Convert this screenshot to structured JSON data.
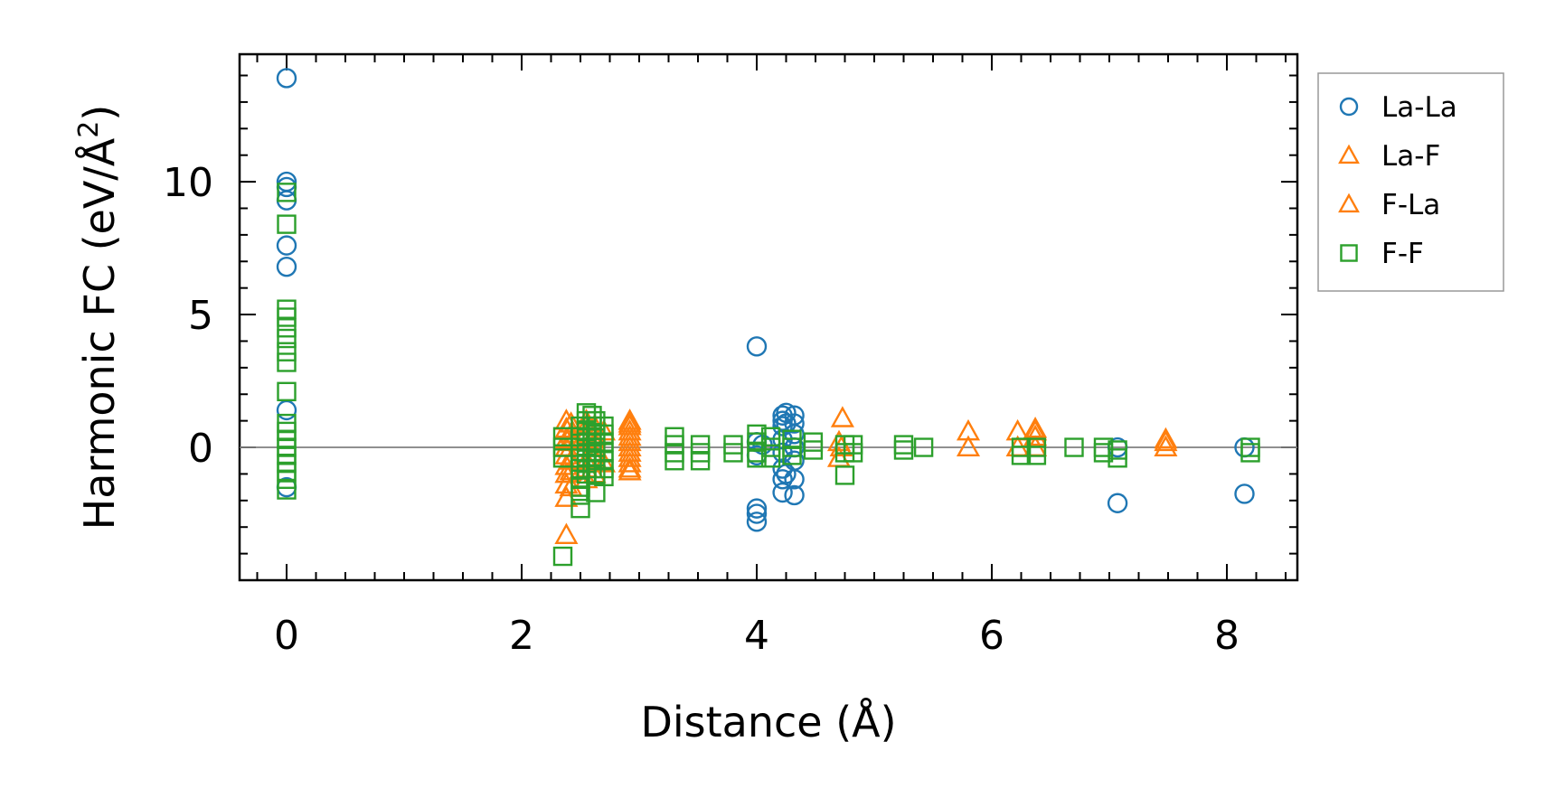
{
  "chart_data": {
    "type": "scatter",
    "xlabel": "Distance (Å)",
    "ylabel_main": "Harmonic FC (eV/Å",
    "ylabel_sup": "2",
    "ylabel_end": ")",
    "xlim": [
      -0.4,
      8.6
    ],
    "ylim": [
      -5.0,
      14.8
    ],
    "xticks": [
      0,
      2,
      4,
      6,
      8
    ],
    "xtick_labels": [
      "0",
      "2",
      "4",
      "6",
      "8"
    ],
    "yticks": [
      0,
      5,
      10
    ],
    "ytick_labels": [
      "0",
      "5",
      "10"
    ],
    "zero_line": true,
    "grid": false,
    "legend_position": "outside-top-right",
    "series": [
      {
        "name": "La-La",
        "marker": "circle",
        "color": "#1f77b4",
        "points": [
          [
            0,
            13.9
          ],
          [
            0,
            10.0
          ],
          [
            0,
            9.8
          ],
          [
            0,
            9.3
          ],
          [
            0,
            7.6
          ],
          [
            0,
            6.8
          ],
          [
            0,
            1.4
          ],
          [
            0,
            -1.5
          ],
          [
            4.0,
            3.8
          ],
          [
            4.0,
            -2.3
          ],
          [
            4.0,
            -2.5
          ],
          [
            4.0,
            -2.8
          ],
          [
            4.0,
            0.2
          ],
          [
            4.0,
            -0.3
          ],
          [
            4.05,
            0.1
          ],
          [
            4.22,
            1.2
          ],
          [
            4.22,
            1.0
          ],
          [
            4.22,
            0.8
          ],
          [
            4.22,
            0.3
          ],
          [
            4.22,
            -0.2
          ],
          [
            4.22,
            -0.8
          ],
          [
            4.22,
            -1.2
          ],
          [
            4.22,
            -1.7
          ],
          [
            4.25,
            1.3
          ],
          [
            4.25,
            0.9
          ],
          [
            4.25,
            -1.0
          ],
          [
            4.32,
            1.2
          ],
          [
            4.32,
            0.9
          ],
          [
            4.32,
            0.5
          ],
          [
            4.32,
            0.0
          ],
          [
            4.32,
            -0.5
          ],
          [
            4.32,
            -1.2
          ],
          [
            4.32,
            -1.8
          ],
          [
            7.07,
            0.0
          ],
          [
            7.07,
            -2.1
          ],
          [
            8.15,
            0.0
          ],
          [
            8.15,
            -1.75
          ]
        ]
      },
      {
        "name": "La-F",
        "marker": "triangle",
        "color": "#ff7f0e",
        "points": [
          [
            2.38,
            1.0
          ],
          [
            2.38,
            0.7
          ],
          [
            2.38,
            0.3
          ],
          [
            2.38,
            0.0
          ],
          [
            2.38,
            -0.3
          ],
          [
            2.38,
            -0.7
          ],
          [
            2.38,
            -1.0
          ],
          [
            2.38,
            -1.4
          ],
          [
            2.38,
            -1.9
          ],
          [
            2.38,
            -3.3
          ],
          [
            2.42,
            0.5
          ],
          [
            2.42,
            -0.5
          ],
          [
            2.42,
            -1.5
          ],
          [
            2.55,
            1.0
          ],
          [
            2.55,
            0.5
          ],
          [
            2.55,
            0.0
          ],
          [
            2.55,
            -0.5
          ],
          [
            2.55,
            -1.2
          ],
          [
            2.62,
            0.8
          ],
          [
            2.62,
            0.2
          ],
          [
            2.62,
            -0.4
          ],
          [
            2.62,
            -1.0
          ],
          [
            2.7,
            0.6
          ],
          [
            2.7,
            -0.6
          ],
          [
            2.92,
            1.0
          ],
          [
            2.92,
            0.8
          ],
          [
            2.92,
            0.6
          ],
          [
            2.92,
            0.4
          ],
          [
            2.92,
            0.2
          ],
          [
            2.92,
            -0.2
          ],
          [
            2.92,
            -0.4
          ],
          [
            2.92,
            -0.6
          ],
          [
            2.92,
            -0.9
          ],
          [
            4.7,
            0.2
          ],
          [
            4.7,
            -0.4
          ],
          [
            4.73,
            1.1
          ],
          [
            5.8,
            0.6
          ],
          [
            5.8,
            0.0
          ],
          [
            6.22,
            0.6
          ],
          [
            6.22,
            0.0
          ],
          [
            6.37,
            0.7
          ],
          [
            6.37,
            0.4
          ],
          [
            6.37,
            0.0
          ],
          [
            7.48,
            0.3
          ],
          [
            7.48,
            0.0
          ]
        ]
      },
      {
        "name": "F-La",
        "marker": "triangle",
        "color": "#ff7f0e",
        "points": [
          [
            2.42,
            0.9
          ],
          [
            2.42,
            0.2
          ],
          [
            2.42,
            -0.9
          ],
          [
            2.55,
            0.8
          ],
          [
            2.55,
            -0.8
          ],
          [
            2.62,
            0.4
          ],
          [
            2.62,
            -0.2
          ],
          [
            2.92,
            0.9
          ],
          [
            2.92,
            0.0
          ],
          [
            2.92,
            -0.8
          ],
          [
            4.72,
            0.0
          ],
          [
            6.37,
            0.6
          ],
          [
            7.48,
            0.2
          ]
        ]
      },
      {
        "name": "F-F",
        "marker": "square",
        "color": "#2ca02c",
        "points": [
          [
            0,
            9.6
          ],
          [
            0,
            8.4
          ],
          [
            0,
            5.2
          ],
          [
            0,
            4.9
          ],
          [
            0,
            4.5
          ],
          [
            0,
            4.1
          ],
          [
            0,
            3.6
          ],
          [
            0,
            3.2
          ],
          [
            0,
            2.1
          ],
          [
            0,
            0.9
          ],
          [
            0,
            0.6
          ],
          [
            0,
            0.3
          ],
          [
            0,
            0.0
          ],
          [
            0,
            -0.3
          ],
          [
            0,
            -0.6
          ],
          [
            0,
            -0.9
          ],
          [
            0,
            -1.2
          ],
          [
            0,
            -1.6
          ],
          [
            2.35,
            0.4
          ],
          [
            2.35,
            0.0
          ],
          [
            2.35,
            -0.4
          ],
          [
            2.35,
            -4.1
          ],
          [
            2.5,
            0.8
          ],
          [
            2.5,
            0.4
          ],
          [
            2.5,
            0.0
          ],
          [
            2.5,
            -0.4
          ],
          [
            2.5,
            -0.8
          ],
          [
            2.5,
            -1.2
          ],
          [
            2.5,
            -1.5
          ],
          [
            2.5,
            -1.8
          ],
          [
            2.5,
            -2.3
          ],
          [
            2.55,
            1.3
          ],
          [
            2.55,
            1.0
          ],
          [
            2.55,
            0.6
          ],
          [
            2.55,
            0.2
          ],
          [
            2.55,
            -0.2
          ],
          [
            2.55,
            -0.6
          ],
          [
            2.55,
            -1.0
          ],
          [
            2.6,
            1.2
          ],
          [
            2.6,
            0.8
          ],
          [
            2.6,
            0.4
          ],
          [
            2.6,
            0.0
          ],
          [
            2.6,
            -0.4
          ],
          [
            2.6,
            -0.8
          ],
          [
            2.63,
            1.0
          ],
          [
            2.63,
            0.5
          ],
          [
            2.63,
            0.0
          ],
          [
            2.63,
            -0.5
          ],
          [
            2.63,
            -1.0
          ],
          [
            2.63,
            -1.7
          ],
          [
            2.7,
            0.8
          ],
          [
            2.7,
            0.5
          ],
          [
            2.7,
            0.2
          ],
          [
            2.7,
            -0.2
          ],
          [
            2.7,
            -0.5
          ],
          [
            2.7,
            -0.8
          ],
          [
            2.7,
            -1.1
          ],
          [
            3.3,
            0.4
          ],
          [
            3.3,
            0.1
          ],
          [
            3.3,
            -0.2
          ],
          [
            3.3,
            -0.5
          ],
          [
            3.52,
            0.1
          ],
          [
            3.52,
            -0.2
          ],
          [
            3.52,
            -0.5
          ],
          [
            3.8,
            0.1
          ],
          [
            3.8,
            -0.2
          ],
          [
            4.0,
            0.5
          ],
          [
            4.0,
            0.2
          ],
          [
            4.0,
            -0.2
          ],
          [
            4.0,
            -0.4
          ],
          [
            4.12,
            0.4
          ],
          [
            4.12,
            0.0
          ],
          [
            4.12,
            -0.4
          ],
          [
            4.3,
            0.3
          ],
          [
            4.3,
            0.0
          ],
          [
            4.3,
            -0.3
          ],
          [
            4.48,
            0.2
          ],
          [
            4.48,
            -0.1
          ],
          [
            4.75,
            0.1
          ],
          [
            4.75,
            -0.2
          ],
          [
            4.75,
            -1.05
          ],
          [
            4.82,
            0.1
          ],
          [
            4.82,
            -0.2
          ],
          [
            5.25,
            0.1
          ],
          [
            5.25,
            -0.1
          ],
          [
            5.42,
            0.0
          ],
          [
            6.25,
            0.0
          ],
          [
            6.25,
            -0.3
          ],
          [
            6.38,
            0.0
          ],
          [
            6.38,
            -0.3
          ],
          [
            6.7,
            0.0
          ],
          [
            6.95,
            0.0
          ],
          [
            6.95,
            -0.2
          ],
          [
            7.07,
            -0.1
          ],
          [
            7.07,
            -0.4
          ],
          [
            8.2,
            0.0
          ],
          [
            8.2,
            -0.2
          ]
        ]
      }
    ]
  }
}
